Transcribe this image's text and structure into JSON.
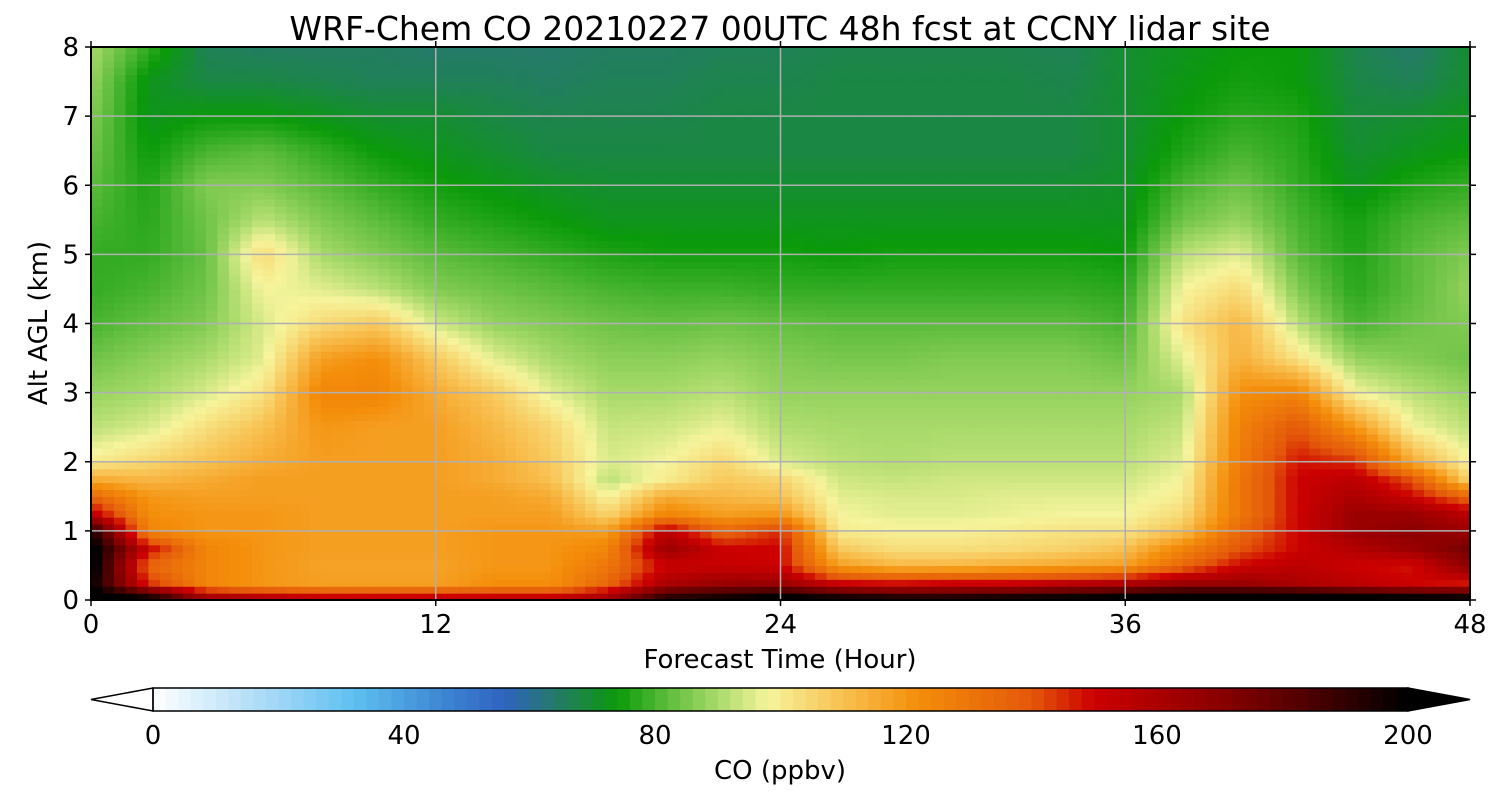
{
  "chart_data": {
    "type": "heatmap",
    "title": "WRF-Chem CO  20210227 00UTC 48h fcst at CCNY lidar site",
    "xlabel": "Forecast Time (Hour)",
    "ylabel": "Alt AGL (km)",
    "xlim": [
      0,
      48
    ],
    "ylim": [
      0,
      8
    ],
    "x_ticks": [
      "0",
      "12",
      "24",
      "36",
      "48"
    ],
    "y_ticks": [
      "0",
      "1",
      "2",
      "3",
      "4",
      "5",
      "6",
      "7",
      "8"
    ],
    "grid": true,
    "colorbar": {
      "label": "CO  (ppbv)",
      "range": [
        0,
        200
      ],
      "extend": "both",
      "tick_values": [
        0,
        40,
        80,
        120,
        160,
        200
      ],
      "tick_labels": [
        "0",
        "40",
        "80",
        "120",
        "160",
        "200"
      ],
      "stops": [
        {
          "v": 0,
          "c": "#ffffff"
        },
        {
          "v": 20,
          "c": "#9fd6f6"
        },
        {
          "v": 32,
          "c": "#5ec0f0"
        },
        {
          "v": 48,
          "c": "#3a7fcf"
        },
        {
          "v": 56,
          "c": "#2f63c0"
        },
        {
          "v": 64,
          "c": "#257a6a"
        },
        {
          "v": 74,
          "c": "#0a9a0a"
        },
        {
          "v": 82,
          "c": "#5cbc3c"
        },
        {
          "v": 90,
          "c": "#a8da6a"
        },
        {
          "v": 98,
          "c": "#f6f49c"
        },
        {
          "v": 110,
          "c": "#f8c050"
        },
        {
          "v": 122,
          "c": "#f48e0a"
        },
        {
          "v": 140,
          "c": "#e4580a"
        },
        {
          "v": 150,
          "c": "#cc0000"
        },
        {
          "v": 170,
          "c": "#8a0000"
        },
        {
          "v": 188,
          "c": "#3c0000"
        },
        {
          "v": 200,
          "c": "#000000"
        }
      ]
    },
    "x": [
      0,
      2,
      4,
      6,
      8,
      10,
      12,
      14,
      16,
      18,
      20,
      22,
      24,
      26,
      28,
      30,
      32,
      34,
      36,
      38,
      40,
      42,
      44,
      46,
      48
    ],
    "y": [
      0.05,
      0.25,
      0.5,
      0.75,
      1.0,
      1.25,
      1.5,
      1.75,
      2.0,
      2.5,
      3.0,
      3.5,
      4.0,
      4.5,
      5.0,
      5.5,
      6.0,
      6.5,
      7.0,
      7.5,
      8.0
    ],
    "z": [
      [
        205,
        195,
        160,
        155,
        150,
        150,
        150,
        150,
        150,
        160,
        190,
        195,
        200,
        195,
        192,
        192,
        195,
        197,
        200,
        205,
        205,
        205,
        200,
        198,
        196
      ],
      [
        200,
        145,
        125,
        120,
        118,
        118,
        118,
        122,
        122,
        135,
        160,
        165,
        165,
        150,
        148,
        150,
        150,
        155,
        158,
        165,
        165,
        160,
        155,
        150,
        148
      ],
      [
        205,
        135,
        125,
        120,
        117,
        117,
        117,
        120,
        120,
        130,
        150,
        152,
        150,
        118,
        112,
        112,
        114,
        116,
        118,
        135,
        150,
        155,
        150,
        148,
        170
      ],
      [
        205,
        150,
        125,
        120,
        118,
        118,
        118,
        120,
        120,
        125,
        165,
        150,
        150,
        108,
        103,
        103,
        104,
        106,
        110,
        125,
        140,
        150,
        158,
        165,
        175
      ],
      [
        195,
        125,
        120,
        120,
        118,
        118,
        118,
        120,
        120,
        118,
        155,
        135,
        145,
        100,
        99,
        99,
        100,
        102,
        102,
        110,
        135,
        150,
        165,
        170,
        165
      ],
      [
        155,
        122,
        120,
        120,
        118,
        118,
        118,
        118,
        118,
        105,
        125,
        118,
        120,
        98,
        96,
        96,
        97,
        98,
        98,
        104,
        130,
        150,
        165,
        165,
        155
      ],
      [
        135,
        120,
        118,
        118,
        118,
        118,
        118,
        118,
        115,
        98,
        115,
        112,
        110,
        96,
        95,
        95,
        96,
        96,
        96,
        100,
        130,
        150,
        160,
        150,
        135
      ],
      [
        115,
        112,
        115,
        118,
        118,
        118,
        118,
        115,
        110,
        92,
        100,
        108,
        105,
        94,
        93,
        94,
        94,
        94,
        94,
        98,
        130,
        150,
        155,
        140,
        105
      ],
      [
        100,
        105,
        110,
        115,
        118,
        118,
        118,
        115,
        108,
        95,
        98,
        105,
        95,
        92,
        91,
        92,
        92,
        92,
        92,
        96,
        128,
        148,
        145,
        115,
        98
      ],
      [
        92,
        95,
        103,
        110,
        120,
        118,
        118,
        112,
        105,
        93,
        94,
        97,
        91,
        90,
        90,
        90,
        90,
        90,
        90,
        93,
        126,
        140,
        120,
        98,
        92
      ],
      [
        88,
        90,
        95,
        102,
        125,
        125,
        115,
        108,
        96,
        90,
        90,
        92,
        88,
        88,
        88,
        88,
        88,
        88,
        88,
        90,
        122,
        125,
        98,
        92,
        88
      ],
      [
        84,
        87,
        90,
        96,
        118,
        122,
        108,
        96,
        90,
        87,
        87,
        88,
        86,
        85,
        85,
        86,
        86,
        86,
        84,
        96,
        114,
        102,
        88,
        86,
        84
      ],
      [
        80,
        83,
        86,
        95,
        104,
        108,
        94,
        88,
        86,
        84,
        83,
        84,
        83,
        82,
        82,
        82,
        82,
        82,
        80,
        102,
        112,
        92,
        80,
        84,
        86
      ],
      [
        78,
        80,
        84,
        98,
        96,
        92,
        86,
        84,
        82,
        80,
        79,
        79,
        78,
        78,
        78,
        78,
        78,
        78,
        77,
        98,
        104,
        86,
        77,
        82,
        88
      ],
      [
        78,
        78,
        83,
        104,
        90,
        86,
        82,
        80,
        78,
        76,
        75,
        75,
        75,
        74,
        75,
        75,
        75,
        75,
        74,
        92,
        96,
        82,
        76,
        82,
        86
      ],
      [
        80,
        77,
        84,
        92,
        86,
        82,
        78,
        76,
        74,
        72,
        72,
        72,
        72,
        72,
        72,
        72,
        72,
        72,
        72,
        84,
        88,
        80,
        75,
        80,
        82
      ],
      [
        82,
        76,
        86,
        86,
        82,
        78,
        75,
        73,
        71,
        70,
        70,
        70,
        70,
        70,
        70,
        70,
        70,
        70,
        71,
        80,
        84,
        78,
        72,
        76,
        78
      ],
      [
        84,
        74,
        80,
        82,
        78,
        74,
        72,
        70,
        68,
        68,
        68,
        68,
        68,
        68,
        68,
        68,
        68,
        68,
        70,
        76,
        80,
        77,
        70,
        72,
        74
      ],
      [
        86,
        72,
        74,
        74,
        72,
        70,
        70,
        68,
        67,
        67,
        67,
        68,
        68,
        68,
        68,
        68,
        68,
        68,
        70,
        74,
        77,
        76,
        69,
        70,
        72
      ],
      [
        88,
        72,
        68,
        68,
        67,
        66,
        66,
        66,
        65,
        66,
        66,
        67,
        67,
        68,
        68,
        68,
        68,
        67,
        70,
        73,
        75,
        74,
        68,
        66,
        70
      ],
      [
        90,
        78,
        66,
        65,
        65,
        65,
        64,
        64,
        64,
        65,
        65,
        66,
        66,
        67,
        67,
        67,
        67,
        66,
        70,
        72,
        74,
        74,
        67,
        64,
        70
      ]
    ]
  }
}
